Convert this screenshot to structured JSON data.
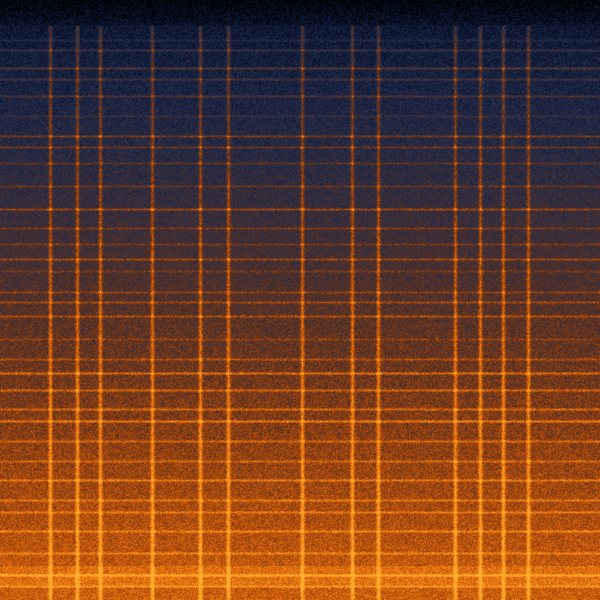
{
  "image": {
    "kind": "spectrogram",
    "colormap": [
      "#000000",
      "#0d1a3a",
      "#2a2e48",
      "#5a3020",
      "#b04a0a",
      "#f07a10",
      "#ffb030"
    ],
    "accent_line_color": "#ff8a1a"
  }
}
